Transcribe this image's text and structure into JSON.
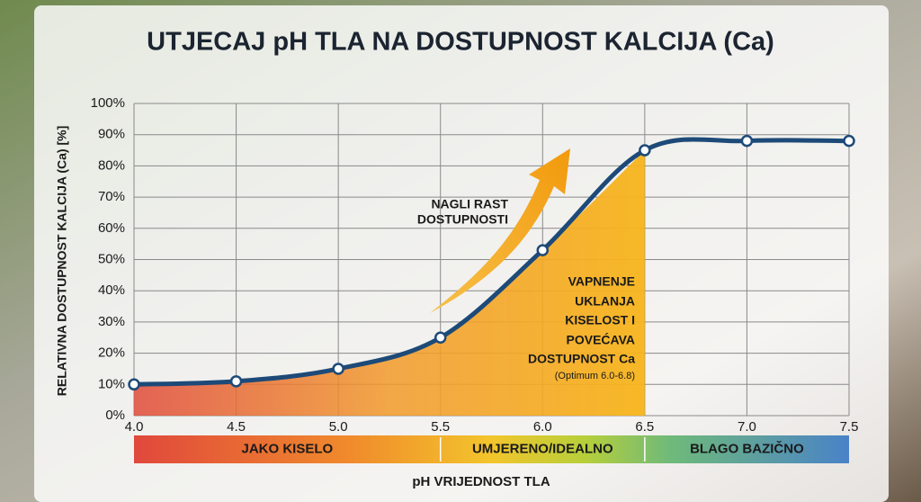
{
  "chart_data": {
    "type": "line",
    "title": "UTJECAJ pH TLA NA DOSTUPNOST KALCIJA (Ca)",
    "x_label": "pH VRIJEDNOST TLA",
    "y_label": "RELATIVNA DOSTUPNOST KALCIJA (Ca) [%]",
    "x": [
      4.0,
      4.5,
      5.0,
      5.5,
      6.0,
      6.5,
      7.0,
      7.5
    ],
    "series": [
      {
        "color": "#1d4a78",
        "values": [
          10,
          11,
          15,
          25,
          53,
          85,
          88,
          88
        ]
      }
    ],
    "xlim": [
      4.0,
      7.5
    ],
    "xticks": [
      {
        "value": 4,
        "label": "4.0"
      },
      4.5,
      {
        "value": 5,
        "label": "5.0"
      },
      5.5,
      {
        "value": 6,
        "label": "6.0"
      },
      6.5,
      {
        "value": 7,
        "label": "7.0"
      },
      7.5
    ],
    "ylim": [
      0,
      100
    ],
    "yticks": [
      {
        "value": 0,
        "label": "0%"
      },
      {
        "value": 10,
        "label": "10%"
      },
      {
        "value": 20,
        "label": "20%"
      },
      {
        "value": 30,
        "label": "30%"
      },
      {
        "value": 40,
        "label": "40%"
      },
      {
        "value": 50,
        "label": "50%"
      },
      {
        "value": 60,
        "label": "60%"
      },
      {
        "value": 70,
        "label": "70%"
      },
      {
        "value": 80,
        "label": "80%"
      },
      {
        "value": 90,
        "label": "90%"
      },
      {
        "value": 100,
        "label": "100%"
      }
    ],
    "grid": true,
    "zones": [
      {
        "label": "JAKO KISELO",
        "from": 4.0,
        "to": 5.5
      },
      {
        "label": "UMJERENO/IDEALNO",
        "from": 5.5,
        "to": 6.5
      },
      {
        "label": "BLAGO BAZIČNO",
        "from": 6.5,
        "to": 7.5
      }
    ],
    "annotations": [
      {
        "lines": [
          "NAGLI RAST",
          "DOSTUPNOSTI"
        ]
      },
      {
        "lines": [
          "VAPNENJE",
          "UKLANJA",
          "KISELOST I",
          "POVEĆAVA",
          "DOSTUPNOST Ca",
          "(Optimum 6.0-6.8)"
        ]
      }
    ]
  }
}
